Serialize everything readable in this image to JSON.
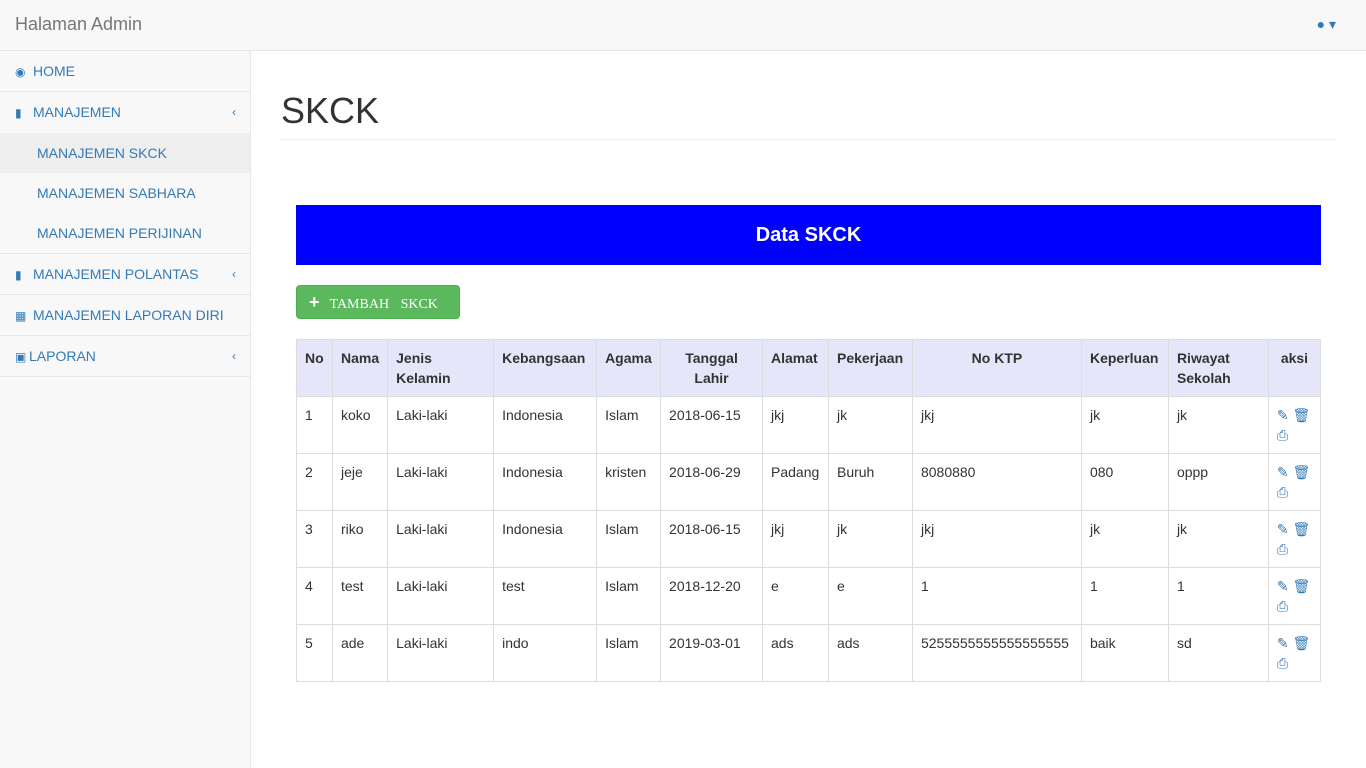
{
  "header": {
    "brand": "Halaman Admin",
    "user_icon": "user-icon"
  },
  "sidebar": {
    "items": [
      {
        "label": "HOME",
        "icon": "dashboard-icon"
      },
      {
        "label": "MANAJEMEN",
        "icon": "bar-chart-icon"
      },
      {
        "label": "MANAJEMEN SKCK"
      },
      {
        "label": "MANAJEMEN SABHARA"
      },
      {
        "label": "MANAJEMEN PERIJINAN"
      },
      {
        "label": "MANAJEMEN POLANTAS",
        "icon": "bar-chart-icon"
      },
      {
        "label": "MANAJEMEN LAPORAN DIRI",
        "icon": "table-icon"
      },
      {
        "label": "LAPORAN",
        "icon": "book-icon"
      }
    ]
  },
  "page": {
    "title": "SKCK",
    "banner": "Data SKCK",
    "add_button": "TAMBAH SKCK"
  },
  "table": {
    "headers": [
      "No",
      "Nama",
      "Jenis Kelamin",
      "Kebangsaan",
      "Agama",
      "Tanggal Lahir",
      "Alamat",
      "Pekerjaan",
      "No KTP",
      "Keperluan",
      "Riwayat Sekolah",
      "aksi"
    ],
    "rows": [
      [
        "1",
        "koko",
        "Laki-laki",
        "Indonesia",
        "Islam",
        "2018-06-15",
        "jkj",
        "jk",
        "jkj",
        "jk",
        "jk"
      ],
      [
        "2",
        "jeje",
        "Laki-laki",
        "Indonesia",
        "kristen",
        "2018-06-29",
        "Padang",
        "Buruh",
        "8080880",
        "080",
        "oppp"
      ],
      [
        "3",
        "riko",
        "Laki-laki",
        "Indonesia",
        "Islam",
        "2018-06-15",
        "jkj",
        "jk",
        "jkj",
        "jk",
        "jk"
      ],
      [
        "4",
        "test",
        "Laki-laki",
        "test",
        "Islam",
        "2018-12-20",
        "e",
        "e",
        "1",
        "1",
        "1"
      ],
      [
        "5",
        "ade",
        "Laki-laki",
        "indo",
        "Islam",
        "2019-03-01",
        "ads",
        "ads",
        "5255555555555555555",
        "baik",
        "sd"
      ]
    ]
  },
  "colors": {
    "banner": "#0000ff",
    "button": "#5cb85c",
    "header_bg": "#e6e6fa",
    "link": "#337ab7"
  }
}
